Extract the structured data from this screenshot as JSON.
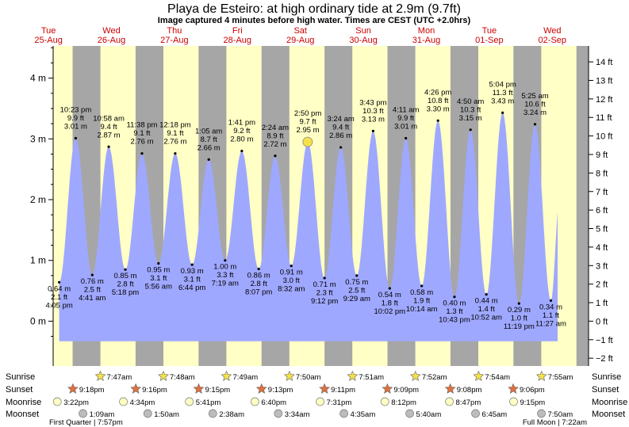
{
  "title": "Playa de Esteiro: at high  ordinary tide at 2.9m (9.7ft)",
  "subtitle": "Image captured 4 minutes before high water. Times are CEST (UTC +2.0hrs)",
  "chart_data": {
    "type": "area",
    "ylabel_left_unit": "m",
    "ylabel_right_unit": "ft",
    "ylim_m": [
      -0.33,
      4.52
    ],
    "y_ticks_m": [
      "4 m",
      "3 m",
      "2 m",
      "1 m",
      "0 m"
    ],
    "y_ticks_ft": [
      "14 ft",
      "13 ft",
      "12 ft",
      "11 ft",
      "10 ft",
      "9 ft",
      "8 ft",
      "7 ft",
      "6 ft",
      "5 ft",
      "4 ft",
      "3 ft",
      "2 ft",
      "1 ft",
      "0 ft",
      "−1 ft",
      "−2 ft"
    ],
    "days": [
      {
        "name": "Tue",
        "date": "25-Aug"
      },
      {
        "name": "Wed",
        "date": "26-Aug"
      },
      {
        "name": "Thu",
        "date": "27-Aug"
      },
      {
        "name": "Fri",
        "date": "28-Aug"
      },
      {
        "name": "Sat",
        "date": "29-Aug"
      },
      {
        "name": "Sun",
        "date": "30-Aug"
      },
      {
        "name": "Mon",
        "date": "31-Aug"
      },
      {
        "name": "Tue",
        "date": "01-Sep"
      },
      {
        "name": "Wed",
        "date": "02-Sep"
      }
    ],
    "tides": [
      {
        "type": "low",
        "day": 0,
        "time": "4:05 pm",
        "ft": "2.1 ft",
        "m": "0.64 m"
      },
      {
        "type": "high",
        "day": 0,
        "time": "10:23 pm",
        "ft": "9.9 ft",
        "m": "3.01 m"
      },
      {
        "type": "low",
        "day": 1,
        "time": "4:41 am",
        "ft": "2.5 ft",
        "m": "0.76 m"
      },
      {
        "type": "high",
        "day": 1,
        "time": "10:58 am",
        "ft": "9.4 ft",
        "m": "2.87 m"
      },
      {
        "type": "low",
        "day": 1,
        "time": "5:18 pm",
        "ft": "2.8 ft",
        "m": "0.85 m"
      },
      {
        "type": "high",
        "day": 1,
        "time": "11:38 pm",
        "ft": "9.1 ft",
        "m": "2.76 m"
      },
      {
        "type": "low",
        "day": 2,
        "time": "5:56 am",
        "ft": "3.1 ft",
        "m": "0.95 m"
      },
      {
        "type": "high",
        "day": 2,
        "time": "12:18 pm",
        "ft": "9.1 ft",
        "m": "2.76 m"
      },
      {
        "type": "low",
        "day": 2,
        "time": "6:44 pm",
        "ft": "3.1 ft",
        "m": "0.93 m"
      },
      {
        "type": "high",
        "day": 3,
        "time": "1:05 am",
        "ft": "8.7 ft",
        "m": "2.66 m"
      },
      {
        "type": "low",
        "day": 3,
        "time": "7:19 am",
        "ft": "3.3 ft",
        "m": "1.00 m"
      },
      {
        "type": "high",
        "day": 3,
        "time": "1:41 pm",
        "ft": "9.2 ft",
        "m": "2.80 m"
      },
      {
        "type": "low",
        "day": 3,
        "time": "8:07 pm",
        "ft": "2.8 ft",
        "m": "0.86 m"
      },
      {
        "type": "high",
        "day": 4,
        "time": "2:24 am",
        "ft": "8.9 ft",
        "m": "2.72 m"
      },
      {
        "type": "low",
        "day": 4,
        "time": "8:32 am",
        "ft": "3.0 ft",
        "m": "0.91 m"
      },
      {
        "type": "high",
        "day": 4,
        "time": "2:50 pm",
        "ft": "9.7 ft",
        "m": "2.95 m"
      },
      {
        "type": "low",
        "day": 4,
        "time": "9:12 pm",
        "ft": "2.3 ft",
        "m": "0.71 m"
      },
      {
        "type": "high",
        "day": 5,
        "time": "3:24 am",
        "ft": "9.4 ft",
        "m": "2.86 m"
      },
      {
        "type": "low",
        "day": 5,
        "time": "9:29 am",
        "ft": "2.5 ft",
        "m": "0.75 m"
      },
      {
        "type": "high",
        "day": 5,
        "time": "3:43 pm",
        "ft": "10.3 ft",
        "m": "3.13 m"
      },
      {
        "type": "low",
        "day": 5,
        "time": "10:02 pm",
        "ft": "1.8 ft",
        "m": "0.54 m"
      },
      {
        "type": "high",
        "day": 6,
        "time": "4:11 am",
        "ft": "9.9 ft",
        "m": "3.01 m"
      },
      {
        "type": "low",
        "day": 6,
        "time": "10:14 am",
        "ft": "1.9 ft",
        "m": "0.58 m"
      },
      {
        "type": "high",
        "day": 6,
        "time": "4:26 pm",
        "ft": "10.8 ft",
        "m": "3.30 m"
      },
      {
        "type": "low",
        "day": 6,
        "time": "10:43 pm",
        "ft": "1.3 ft",
        "m": "0.40 m"
      },
      {
        "type": "high",
        "day": 7,
        "time": "4:50 am",
        "ft": "10.3 ft",
        "m": "3.15 m"
      },
      {
        "type": "low",
        "day": 7,
        "time": "10:52 am",
        "ft": "1.4 ft",
        "m": "0.44 m"
      },
      {
        "type": "high",
        "day": 7,
        "time": "5:04 pm",
        "ft": "11.3 ft",
        "m": "3.43 m"
      },
      {
        "type": "low",
        "day": 7,
        "time": "11:19 pm",
        "ft": "1.0 ft",
        "m": "0.29 m"
      },
      {
        "type": "high",
        "day": 8,
        "time": "5:25 am",
        "ft": "10.6 ft",
        "m": "3.24 m"
      },
      {
        "type": "low",
        "day": 8,
        "time": "11:27 am",
        "ft": "1.1 ft",
        "m": "0.34 m"
      }
    ],
    "current_time": "2:46 pm",
    "current_day": 4,
    "sunrise_h": 7.8,
    "sunset_h": 21.2
  },
  "rows": {
    "sunrise_label": "Sunrise",
    "sunset_label": "Sunset",
    "moonrise_label": "Moonrise",
    "moonset_label": "Moonset",
    "sunrise": [
      {
        "day": 1,
        "time": "7:47am"
      },
      {
        "day": 2,
        "time": "7:48am"
      },
      {
        "day": 3,
        "time": "7:49am"
      },
      {
        "day": 4,
        "time": "7:50am"
      },
      {
        "day": 5,
        "time": "7:51am"
      },
      {
        "day": 6,
        "time": "7:52am"
      },
      {
        "day": 7,
        "time": "7:54am"
      },
      {
        "day": 8,
        "time": "7:55am"
      }
    ],
    "sunset": [
      {
        "day": 0,
        "time": "9:18pm"
      },
      {
        "day": 1,
        "time": "9:16pm"
      },
      {
        "day": 2,
        "time": "9:15pm"
      },
      {
        "day": 3,
        "time": "9:13pm"
      },
      {
        "day": 4,
        "time": "9:11pm"
      },
      {
        "day": 5,
        "time": "9:09pm"
      },
      {
        "day": 6,
        "time": "9:08pm"
      },
      {
        "day": 7,
        "time": "9:06pm"
      }
    ],
    "moonrise": [
      {
        "day": 0,
        "time": "3:22pm"
      },
      {
        "day": 1,
        "time": "4:34pm"
      },
      {
        "day": 2,
        "time": "5:41pm"
      },
      {
        "day": 3,
        "time": "6:40pm"
      },
      {
        "day": 4,
        "time": "7:31pm"
      },
      {
        "day": 5,
        "time": "8:12pm"
      },
      {
        "day": 6,
        "time": "8:47pm"
      },
      {
        "day": 7,
        "time": "9:15pm"
      }
    ],
    "moonset": [
      {
        "day": 1,
        "time": "1:09am"
      },
      {
        "day": 2,
        "time": "1:50am"
      },
      {
        "day": 3,
        "time": "2:38am"
      },
      {
        "day": 4,
        "time": "3:34am"
      },
      {
        "day": 5,
        "time": "4:35am"
      },
      {
        "day": 6,
        "time": "5:40am"
      },
      {
        "day": 7,
        "time": "6:45am"
      },
      {
        "day": 8,
        "time": "7:50am"
      }
    ]
  },
  "moon_phases": {
    "first_quarter": "First Quarter | 7:57pm",
    "full_moon": "Full Moon | 7:22am"
  },
  "colors": {
    "night": "#a6a6a6",
    "day": "#ffffc6",
    "water": "#9fa8ff",
    "sunset_star": "#e0703c",
    "sunrise_star": "#f4e04a",
    "moonrise": "#ffffc4",
    "moonset": "#bcbcbc",
    "day_label": "#cc0000"
  }
}
